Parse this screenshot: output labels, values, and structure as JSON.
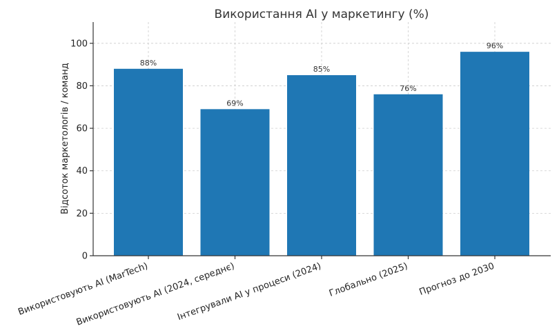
{
  "chart_data": {
    "type": "bar",
    "title": "Використання AI у маркетингу (%)",
    "xlabel": "",
    "ylabel": "Відсоток маркетологів / команд",
    "categories": [
      "Використовують AI (MarTech)",
      "Використовують AI (2024, середнє)",
      "Інтегрували AI у процеси (2024)",
      "Глобально (2025)",
      "Прогноз до 2030"
    ],
    "values": [
      88,
      69,
      85,
      76,
      96
    ],
    "data_labels": [
      "88%",
      "69%",
      "85%",
      "76%",
      "96%"
    ],
    "ylim": [
      0,
      110
    ],
    "yticks": [
      0,
      20,
      40,
      60,
      80,
      100
    ],
    "ytick_labels": [
      "0",
      "20",
      "40",
      "60",
      "80",
      "100"
    ],
    "grid": true,
    "bar_color": "#1f77b4"
  }
}
